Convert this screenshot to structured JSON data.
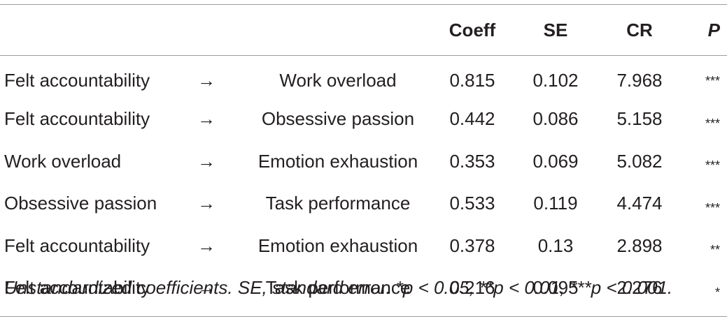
{
  "table": {
    "headers": [
      "",
      "",
      "",
      "Coeff",
      "SE",
      "CR",
      "P"
    ],
    "rows": [
      [
        "Felt accountability",
        "→",
        "Work overload",
        "0.815",
        "0.102",
        "7.968",
        "***"
      ],
      [
        "Felt accountability",
        "→",
        "Obsessive passion",
        "0.442",
        "0.086",
        "5.158",
        "***"
      ],
      [
        "Work overload",
        "→",
        "Emotion exhaustion",
        "0.353",
        "0.069",
        "5.082",
        "***"
      ],
      [
        "Obsessive passion",
        "→",
        "Task performance",
        "0.533",
        "0.119",
        "4.474",
        "***"
      ],
      [
        "Felt accountability",
        "→",
        "Emotion exhaustion",
        "0.378",
        "0.13",
        "2.898",
        "**"
      ],
      [
        "Felt accountability",
        "→",
        "Task performance",
        "0.216",
        "0.095",
        "2.276",
        "*"
      ]
    ]
  },
  "note": "Unstandardized coefficients. SE, standard error. *p < 0.05, **p < 0.01, ***p < 0.001."
}
